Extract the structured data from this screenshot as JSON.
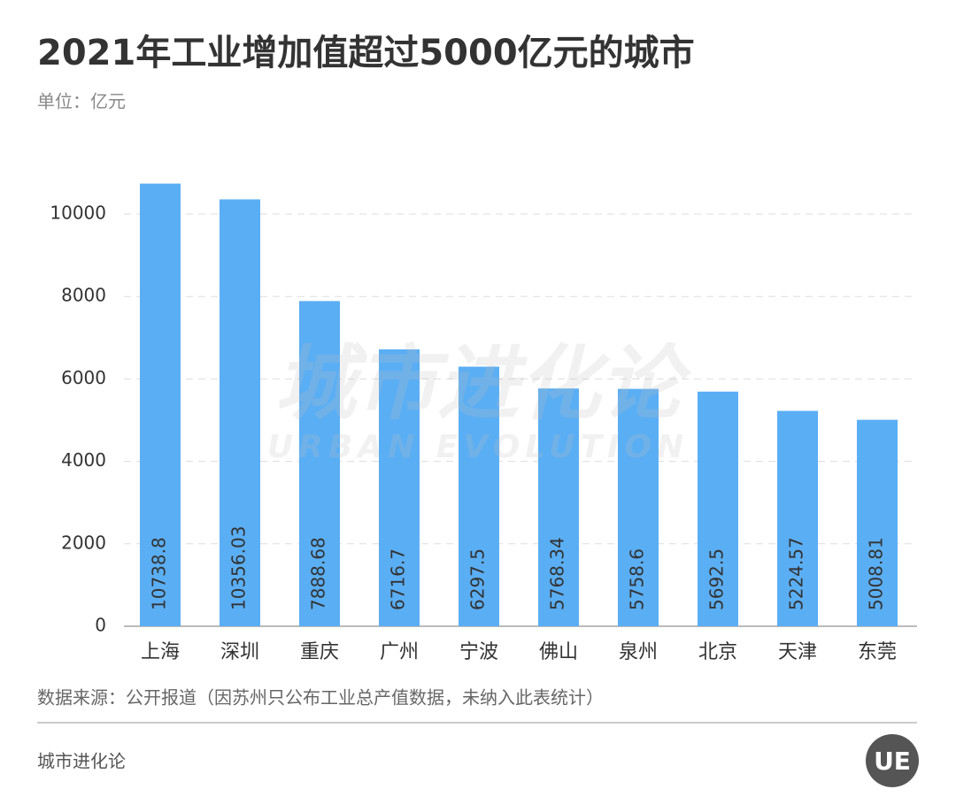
{
  "chart_data": {
    "type": "bar",
    "title": "2021年工业增加值超过5000亿元的城市",
    "subtitle": "单位：亿元",
    "categories": [
      "上海",
      "深圳",
      "重庆",
      "广州",
      "宁波",
      "佛山",
      "泉州",
      "北京",
      "天津",
      "东莞"
    ],
    "values": [
      10738.8,
      10356.03,
      7888.68,
      6716.7,
      6297.5,
      5768.34,
      5758.6,
      5692.5,
      5224.57,
      5008.81
    ],
    "color": "#5aaef4",
    "ylim": [
      0,
      11000
    ],
    "yticks": [
      0,
      2000,
      4000,
      6000,
      8000,
      10000
    ],
    "grid": true,
    "source": "数据来源：公开报道（因苏州只公布工业总产值数据，未纳入此表统计）",
    "footer": "城市进化论",
    "watermark": [
      "城市进化论",
      "URBAN EVOLUTION"
    ],
    "logo": "UE"
  }
}
